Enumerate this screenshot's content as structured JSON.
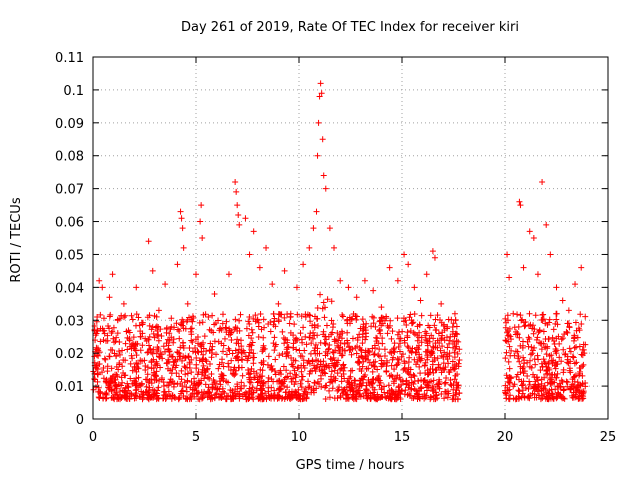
{
  "chart_data": {
    "type": "scatter",
    "title": "Day 261 of 2019, Rate Of TEC Index for receiver kiri",
    "xlabel": "GPS time / hours",
    "ylabel": "ROTI / TECUs",
    "xlim": [
      0,
      25
    ],
    "ylim": [
      0,
      0.11
    ],
    "xticks": [
      0,
      5,
      10,
      15,
      20,
      25
    ],
    "xtick_labels": [
      "0",
      "5",
      "10",
      "15",
      "20",
      "25"
    ],
    "yticks": [
      0,
      0.01,
      0.02,
      0.03,
      0.04,
      0.05,
      0.06,
      0.07,
      0.08,
      0.09,
      0.1,
      0.11
    ],
    "ytick_labels": [
      "0",
      "0.01",
      "0.02",
      "0.03",
      "0.04",
      "0.05",
      "0.06",
      "0.07",
      "0.08",
      "0.09",
      "0.1",
      "0.11"
    ],
    "grid": true,
    "marker": "+",
    "color": "#ff0000",
    "series": [
      {
        "name": "ROTI",
        "points": [
          [
            0.1,
            0.012
          ],
          [
            0.2,
            0.031
          ],
          [
            0.3,
            0.042
          ],
          [
            0.45,
            0.04
          ],
          [
            0.6,
            0.018
          ],
          [
            0.8,
            0.037
          ],
          [
            0.95,
            0.044
          ],
          [
            1.2,
            0.03
          ],
          [
            1.5,
            0.035
          ],
          [
            1.8,
            0.022
          ],
          [
            2.1,
            0.04
          ],
          [
            2.4,
            0.026
          ],
          [
            2.7,
            0.054
          ],
          [
            2.9,
            0.045
          ],
          [
            3.2,
            0.033
          ],
          [
            3.5,
            0.041
          ],
          [
            3.8,
            0.028
          ],
          [
            4.1,
            0.047
          ],
          [
            4.25,
            0.063
          ],
          [
            4.3,
            0.061
          ],
          [
            4.35,
            0.058
          ],
          [
            4.4,
            0.052
          ],
          [
            4.6,
            0.035
          ],
          [
            5.0,
            0.044
          ],
          [
            5.2,
            0.06
          ],
          [
            5.25,
            0.065
          ],
          [
            5.3,
            0.055
          ],
          [
            5.6,
            0.031
          ],
          [
            5.9,
            0.038
          ],
          [
            6.3,
            0.029
          ],
          [
            6.6,
            0.044
          ],
          [
            6.9,
            0.072
          ],
          [
            6.95,
            0.069
          ],
          [
            7.0,
            0.065
          ],
          [
            7.05,
            0.062
          ],
          [
            7.1,
            0.059
          ],
          [
            7.4,
            0.061
          ],
          [
            7.6,
            0.05
          ],
          [
            7.8,
            0.057
          ],
          [
            8.1,
            0.046
          ],
          [
            8.4,
            0.052
          ],
          [
            8.7,
            0.041
          ],
          [
            9.0,
            0.035
          ],
          [
            9.3,
            0.045
          ],
          [
            9.6,
            0.032
          ],
          [
            9.9,
            0.04
          ],
          [
            10.2,
            0.047
          ],
          [
            10.5,
            0.052
          ],
          [
            10.7,
            0.058
          ],
          [
            10.85,
            0.063
          ],
          [
            10.9,
            0.08
          ],
          [
            10.95,
            0.09
          ],
          [
            11.0,
            0.098
          ],
          [
            11.05,
            0.102
          ],
          [
            11.1,
            0.099
          ],
          [
            11.15,
            0.085
          ],
          [
            11.2,
            0.074
          ],
          [
            11.3,
            0.07
          ],
          [
            11.5,
            0.058
          ],
          [
            11.7,
            0.052
          ],
          [
            12.0,
            0.042
          ],
          [
            12.4,
            0.04
          ],
          [
            12.8,
            0.037
          ],
          [
            13.2,
            0.042
          ],
          [
            13.6,
            0.039
          ],
          [
            14.0,
            0.034
          ],
          [
            14.4,
            0.046
          ],
          [
            14.8,
            0.042
          ],
          [
            15.1,
            0.05
          ],
          [
            15.3,
            0.047
          ],
          [
            15.6,
            0.04
          ],
          [
            15.9,
            0.036
          ],
          [
            16.2,
            0.044
          ],
          [
            16.5,
            0.051
          ],
          [
            16.6,
            0.049
          ],
          [
            16.9,
            0.035
          ],
          [
            17.2,
            0.028
          ],
          [
            17.6,
            0.03
          ],
          [
            17.75,
            0.016
          ],
          [
            20.1,
            0.05
          ],
          [
            20.2,
            0.043
          ],
          [
            20.4,
            0.032
          ],
          [
            20.7,
            0.066
          ],
          [
            20.75,
            0.065
          ],
          [
            20.9,
            0.046
          ],
          [
            21.2,
            0.057
          ],
          [
            21.4,
            0.055
          ],
          [
            21.6,
            0.044
          ],
          [
            21.8,
            0.072
          ],
          [
            22.0,
            0.059
          ],
          [
            22.2,
            0.05
          ],
          [
            22.5,
            0.04
          ],
          [
            22.8,
            0.036
          ],
          [
            23.1,
            0.033
          ],
          [
            23.4,
            0.041
          ],
          [
            23.7,
            0.046
          ],
          [
            23.85,
            0.02
          ]
        ]
      }
    ]
  }
}
